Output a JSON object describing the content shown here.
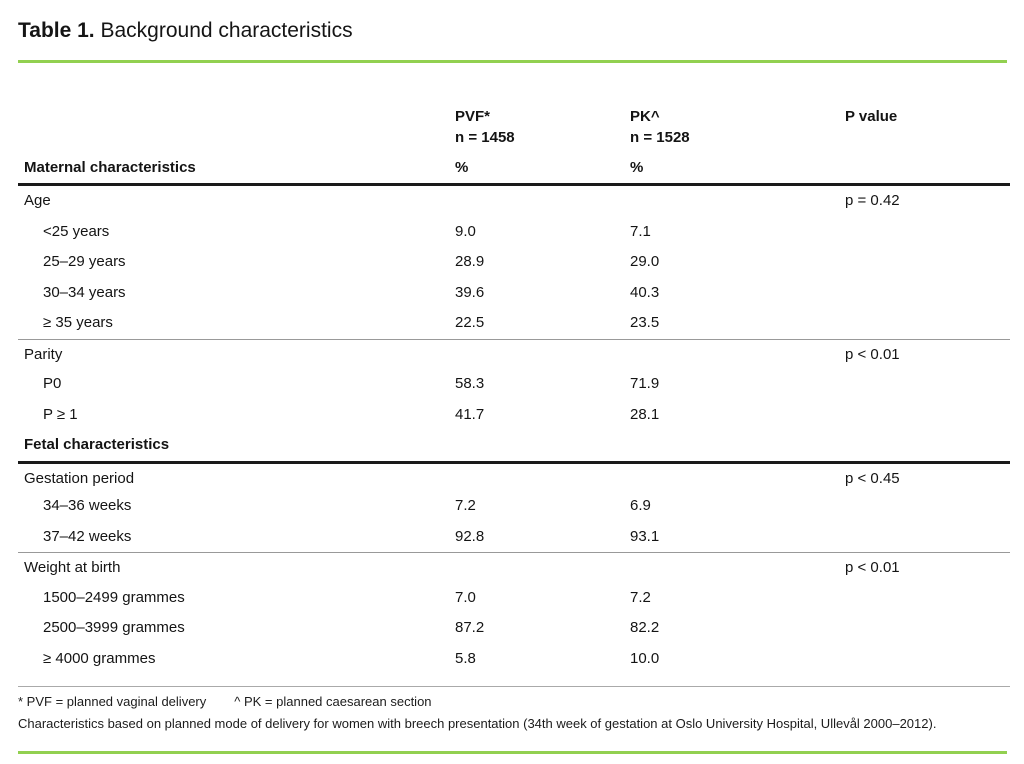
{
  "page": {
    "title_bold": "Table 1.",
    "title_rest": " Background characteristics"
  },
  "colors": {
    "accent_green": "#92D050",
    "rule_dark": "#1a1a1a",
    "rule_gray": "#999999"
  },
  "table": {
    "header": {
      "row_group_label": "Maternal characteristics",
      "col_pvf": {
        "name": "PVF*",
        "n": "n = 1458",
        "unit": "%"
      },
      "col_pk": {
        "name": "PK^",
        "n": "n = 1528",
        "unit": "%"
      },
      "col_p": {
        "name": "P value"
      }
    },
    "rows": [
      {
        "label": "Age",
        "indent": false,
        "bold": false,
        "pvf": "",
        "pk": "",
        "p": "p = 0.42",
        "rule": "none"
      },
      {
        "label": "<25 years",
        "indent": true,
        "bold": false,
        "pvf": "9.0",
        "pk": "7.1",
        "p": "",
        "rule": "none"
      },
      {
        "label": "25–29 years",
        "indent": true,
        "bold": false,
        "pvf": "28.9",
        "pk": "29.0",
        "p": "",
        "rule": "none"
      },
      {
        "label": "30–34 years",
        "indent": true,
        "bold": false,
        "pvf": "39.6",
        "pk": "40.3",
        "p": "",
        "rule": "none"
      },
      {
        "label": "≥ 35 years",
        "indent": true,
        "bold": false,
        "pvf": "22.5",
        "pk": "23.5",
        "p": "",
        "rule": "none"
      },
      {
        "label": "Parity",
        "indent": false,
        "bold": false,
        "pvf": "",
        "pk": "",
        "p": "p < 0.01",
        "rule": "gray"
      },
      {
        "label": "P0",
        "indent": true,
        "bold": false,
        "pvf": "58.3",
        "pk": "71.9",
        "p": "",
        "rule": "none"
      },
      {
        "label": "P ≥ 1",
        "indent": true,
        "bold": false,
        "pvf": "41.7",
        "pk": "28.1",
        "p": "",
        "rule": "none"
      },
      {
        "label": "Fetal characteristics",
        "indent": false,
        "bold": true,
        "pvf": "",
        "pk": "",
        "p": "",
        "rule": "none"
      },
      {
        "label": "Gestation period",
        "indent": false,
        "bold": false,
        "pvf": "",
        "pk": "",
        "p": "p < 0.45",
        "rule": "dark"
      },
      {
        "label": "34–36 weeks",
        "indent": true,
        "bold": false,
        "pvf": "7.2",
        "pk": "6.9",
        "p": "",
        "rule": "none"
      },
      {
        "label": "37–42 weeks",
        "indent": true,
        "bold": false,
        "pvf": "92.8",
        "pk": "93.1",
        "p": "",
        "rule": "none"
      },
      {
        "label": "Weight at birth",
        "indent": false,
        "bold": false,
        "pvf": "",
        "pk": "",
        "p": "p < 0.01",
        "rule": "gray"
      },
      {
        "label": "1500–2499 grammes",
        "indent": true,
        "bold": false,
        "pvf": "7.0",
        "pk": "7.2",
        "p": "",
        "rule": "none"
      },
      {
        "label": "2500–3999 grammes",
        "indent": true,
        "bold": false,
        "pvf": "87.2",
        "pk": "82.2",
        "p": "",
        "rule": "none"
      },
      {
        "label": "≥ 4000 grammes",
        "indent": true,
        "bold": false,
        "pvf": "5.8",
        "pk": "10.0",
        "p": "",
        "rule": "none"
      }
    ]
  },
  "footnotes": {
    "pvf_note": "* PVF = planned vaginal delivery",
    "pk_note": "^ PK = planned caesarean section",
    "description": "Characteristics based on planned mode of delivery for women with breech presentation (34th week of gestation at Oslo University Hospital, Ullevål 2000–2012)."
  }
}
